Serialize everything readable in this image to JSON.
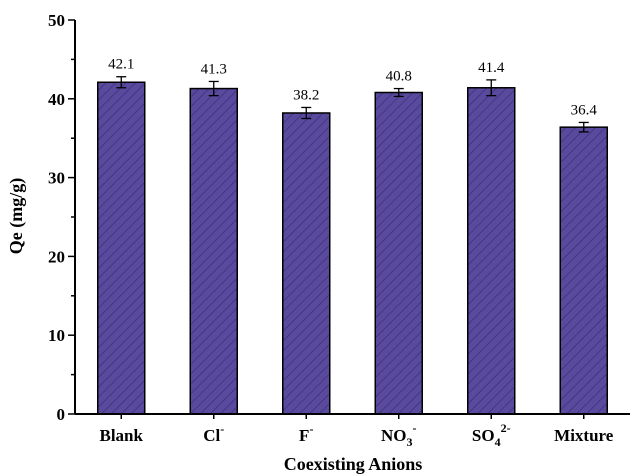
{
  "chart_data": {
    "type": "bar",
    "categories": [
      {
        "base": "Blank",
        "sub": "",
        "sup": ""
      },
      {
        "base": "Cl",
        "sub": "",
        "sup": "-"
      },
      {
        "base": "F",
        "sub": "",
        "sup": "-"
      },
      {
        "base": "NO",
        "sub": "3",
        "sup": "-"
      },
      {
        "base": "SO",
        "sub": "4",
        "sup": "2-"
      },
      {
        "base": "Mixture",
        "sub": "",
        "sup": ""
      }
    ],
    "values": [
      42.1,
      41.3,
      38.2,
      40.8,
      41.4,
      36.4
    ],
    "value_labels": [
      "42.1",
      "41.3",
      "38.2",
      "40.8",
      "41.4",
      "36.4"
    ],
    "errors": [
      0.7,
      0.9,
      0.7,
      0.5,
      1.0,
      0.6
    ],
    "xlabel": "Coexisting Anions",
    "ylabel": "Qe (mg/g)",
    "ylim": [
      0,
      50
    ],
    "yticks": [
      "0",
      "10",
      "20",
      "30",
      "40",
      "50"
    ],
    "grid": false,
    "bar_color": "#5a4a9e",
    "bar_edge_color": "#000000",
    "hatch_color": "#3a2d78"
  }
}
